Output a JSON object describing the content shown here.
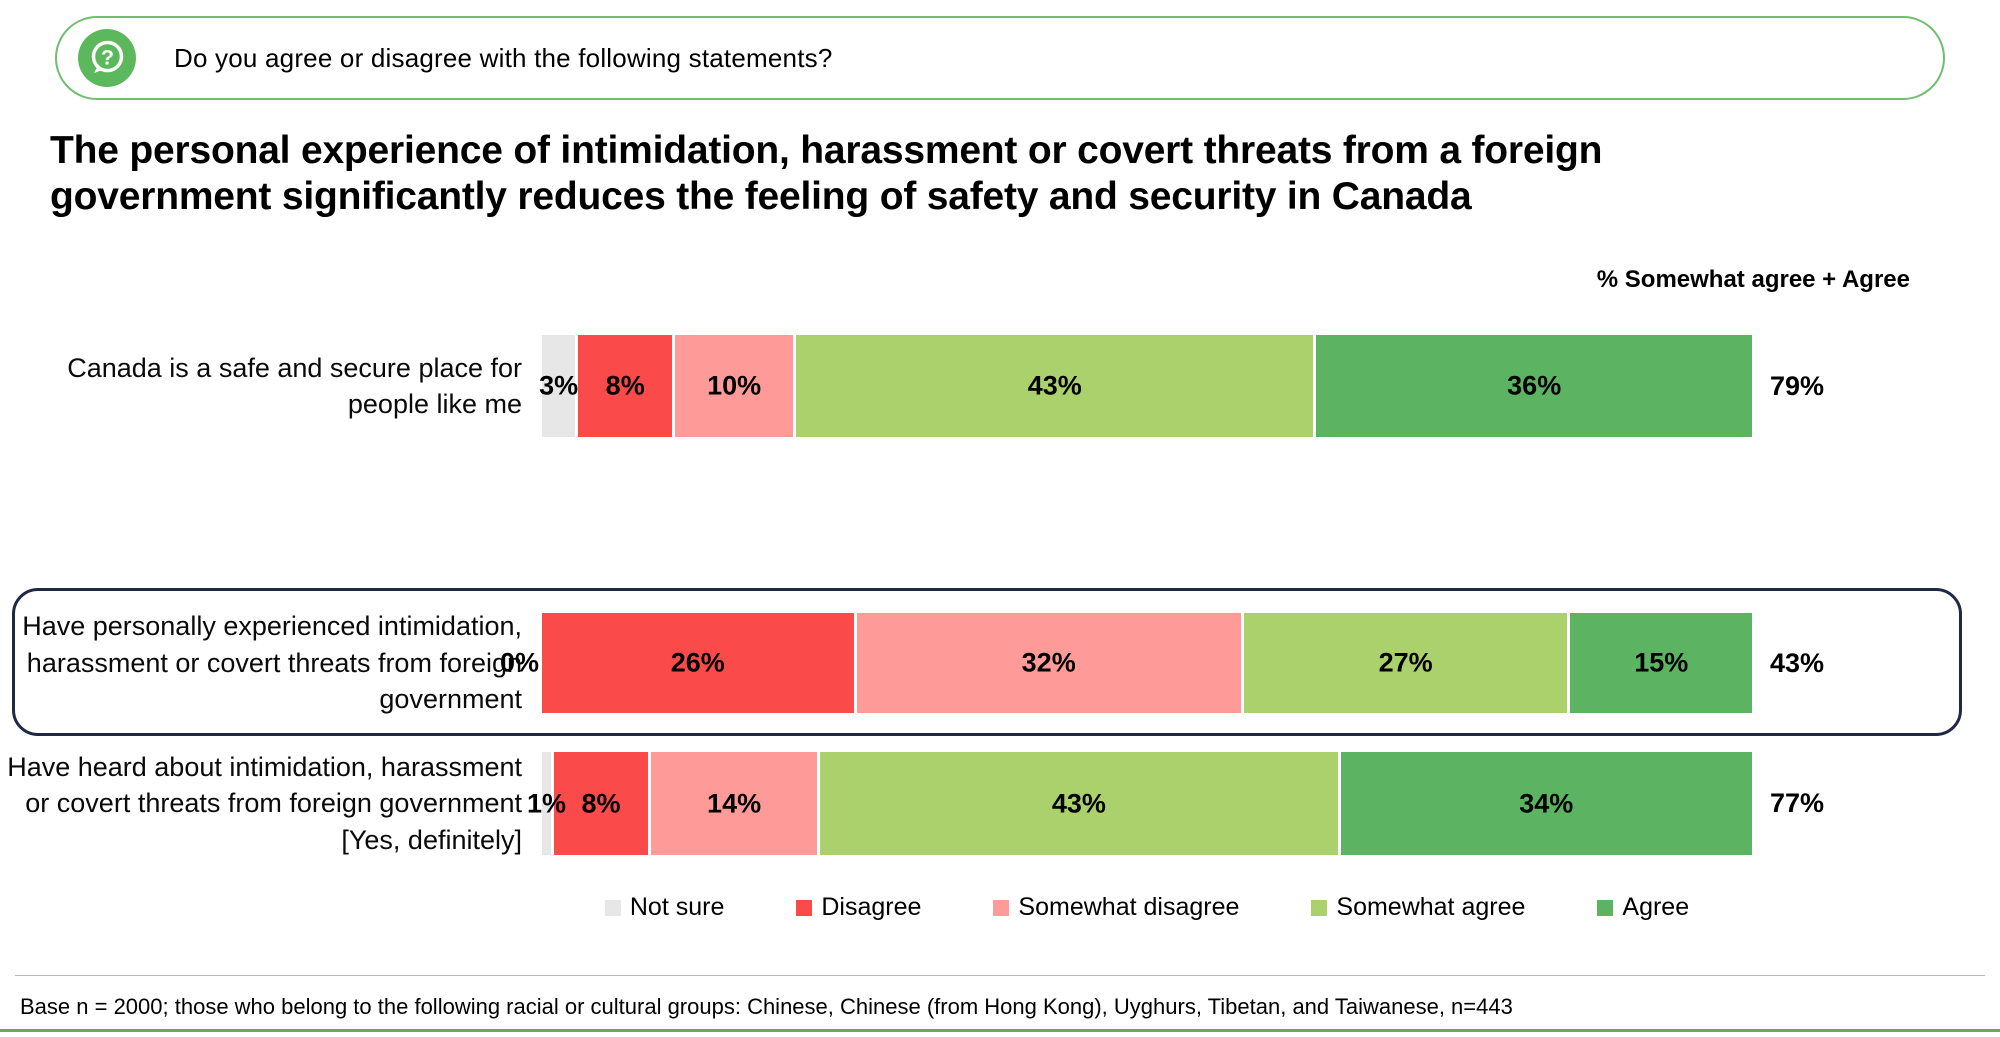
{
  "question_banner": {
    "icon": "question-bubble-icon",
    "text": "Do you agree or disagree with the following statements?"
  },
  "title": "The personal experience of intimidation, harassment or covert threats from a foreign government significantly reduces the feeling of safety and security in Canada",
  "chart_data": {
    "type": "bar",
    "orientation": "horizontal",
    "stacked": true,
    "value_suffix": "%",
    "summary_header": "% Somewhat agree + Agree",
    "categories": [
      "Canada is a safe and secure place for people like me",
      "Have personally experienced intimidation, harassment or covert threats from foreign government",
      "Have heard about intimidation, harassment or covert threats from foreign government [Yes, definitely]"
    ],
    "series": [
      {
        "name": "Not sure",
        "color": "#e7e7e7",
        "values": [
          3,
          0,
          1
        ]
      },
      {
        "name": "Disagree",
        "color": "#fb4a4a",
        "values": [
          8,
          26,
          8
        ]
      },
      {
        "name": "Somewhat disagree",
        "color": "#fe9b98",
        "values": [
          10,
          32,
          14
        ]
      },
      {
        "name": "Somewhat agree",
        "color": "#abd16d",
        "values": [
          43,
          27,
          43
        ]
      },
      {
        "name": "Agree",
        "color": "#5cb463",
        "values": [
          36,
          15,
          34
        ]
      }
    ],
    "totals": [
      "79%",
      "43%",
      "77%"
    ],
    "highlighted_category_index": 1,
    "legend_position": "bottom",
    "grid": false,
    "xlim": [
      0,
      100
    ]
  },
  "colors": {
    "banner_border": "#6fbf6f",
    "banner_icon_green": "#5cb85c",
    "highlight_box_border": "#1f2945",
    "bottom_line_green": "#5fae5f"
  },
  "footnote": "Base n = 2000; those who belong to the following racial or cultural groups: Chinese, Chinese (from Hong Kong), Uyghurs, Tibetan, and Taiwanese, n=443"
}
